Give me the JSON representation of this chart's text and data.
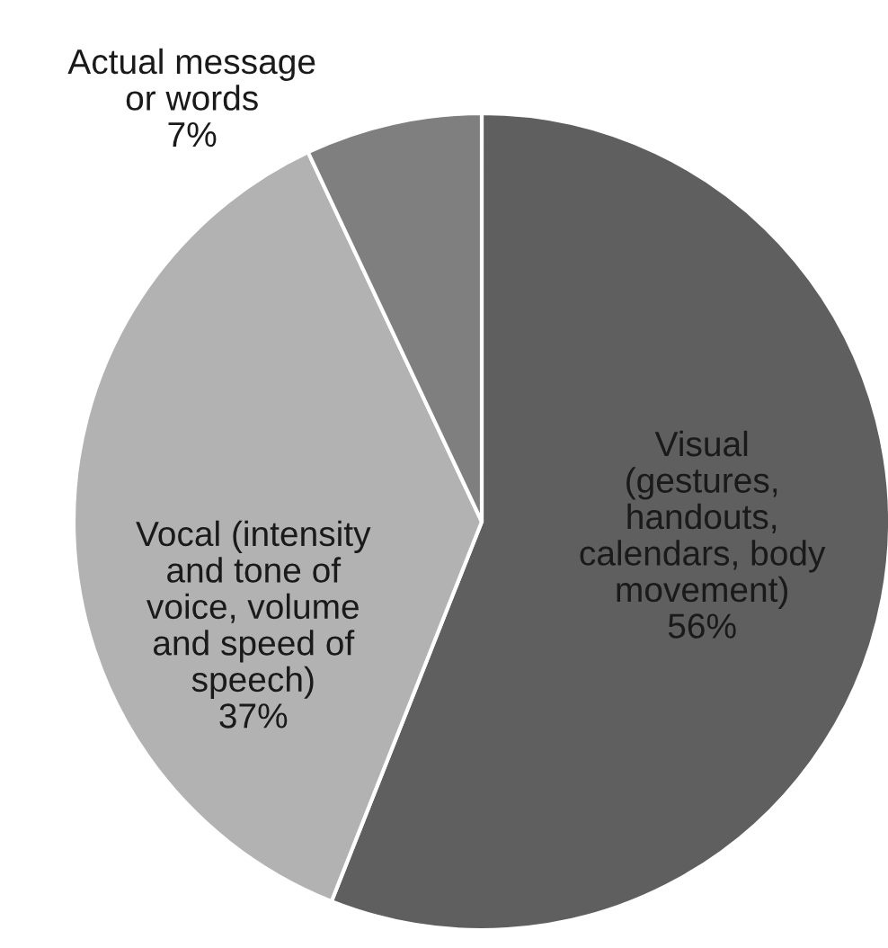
{
  "chart_data": {
    "type": "pie",
    "categories": [
      "Visual (gestures, handouts, calendars, body movement)",
      "Vocal (intensity and tone of voice, volume and speed of speech)",
      "Actual message or words"
    ],
    "values": [
      56,
      37,
      7
    ],
    "colors": [
      "#5f5f5f",
      "#b2b2b2",
      "#7f7f7f"
    ],
    "value_labels": [
      "56%",
      "37%",
      "7%"
    ]
  }
}
